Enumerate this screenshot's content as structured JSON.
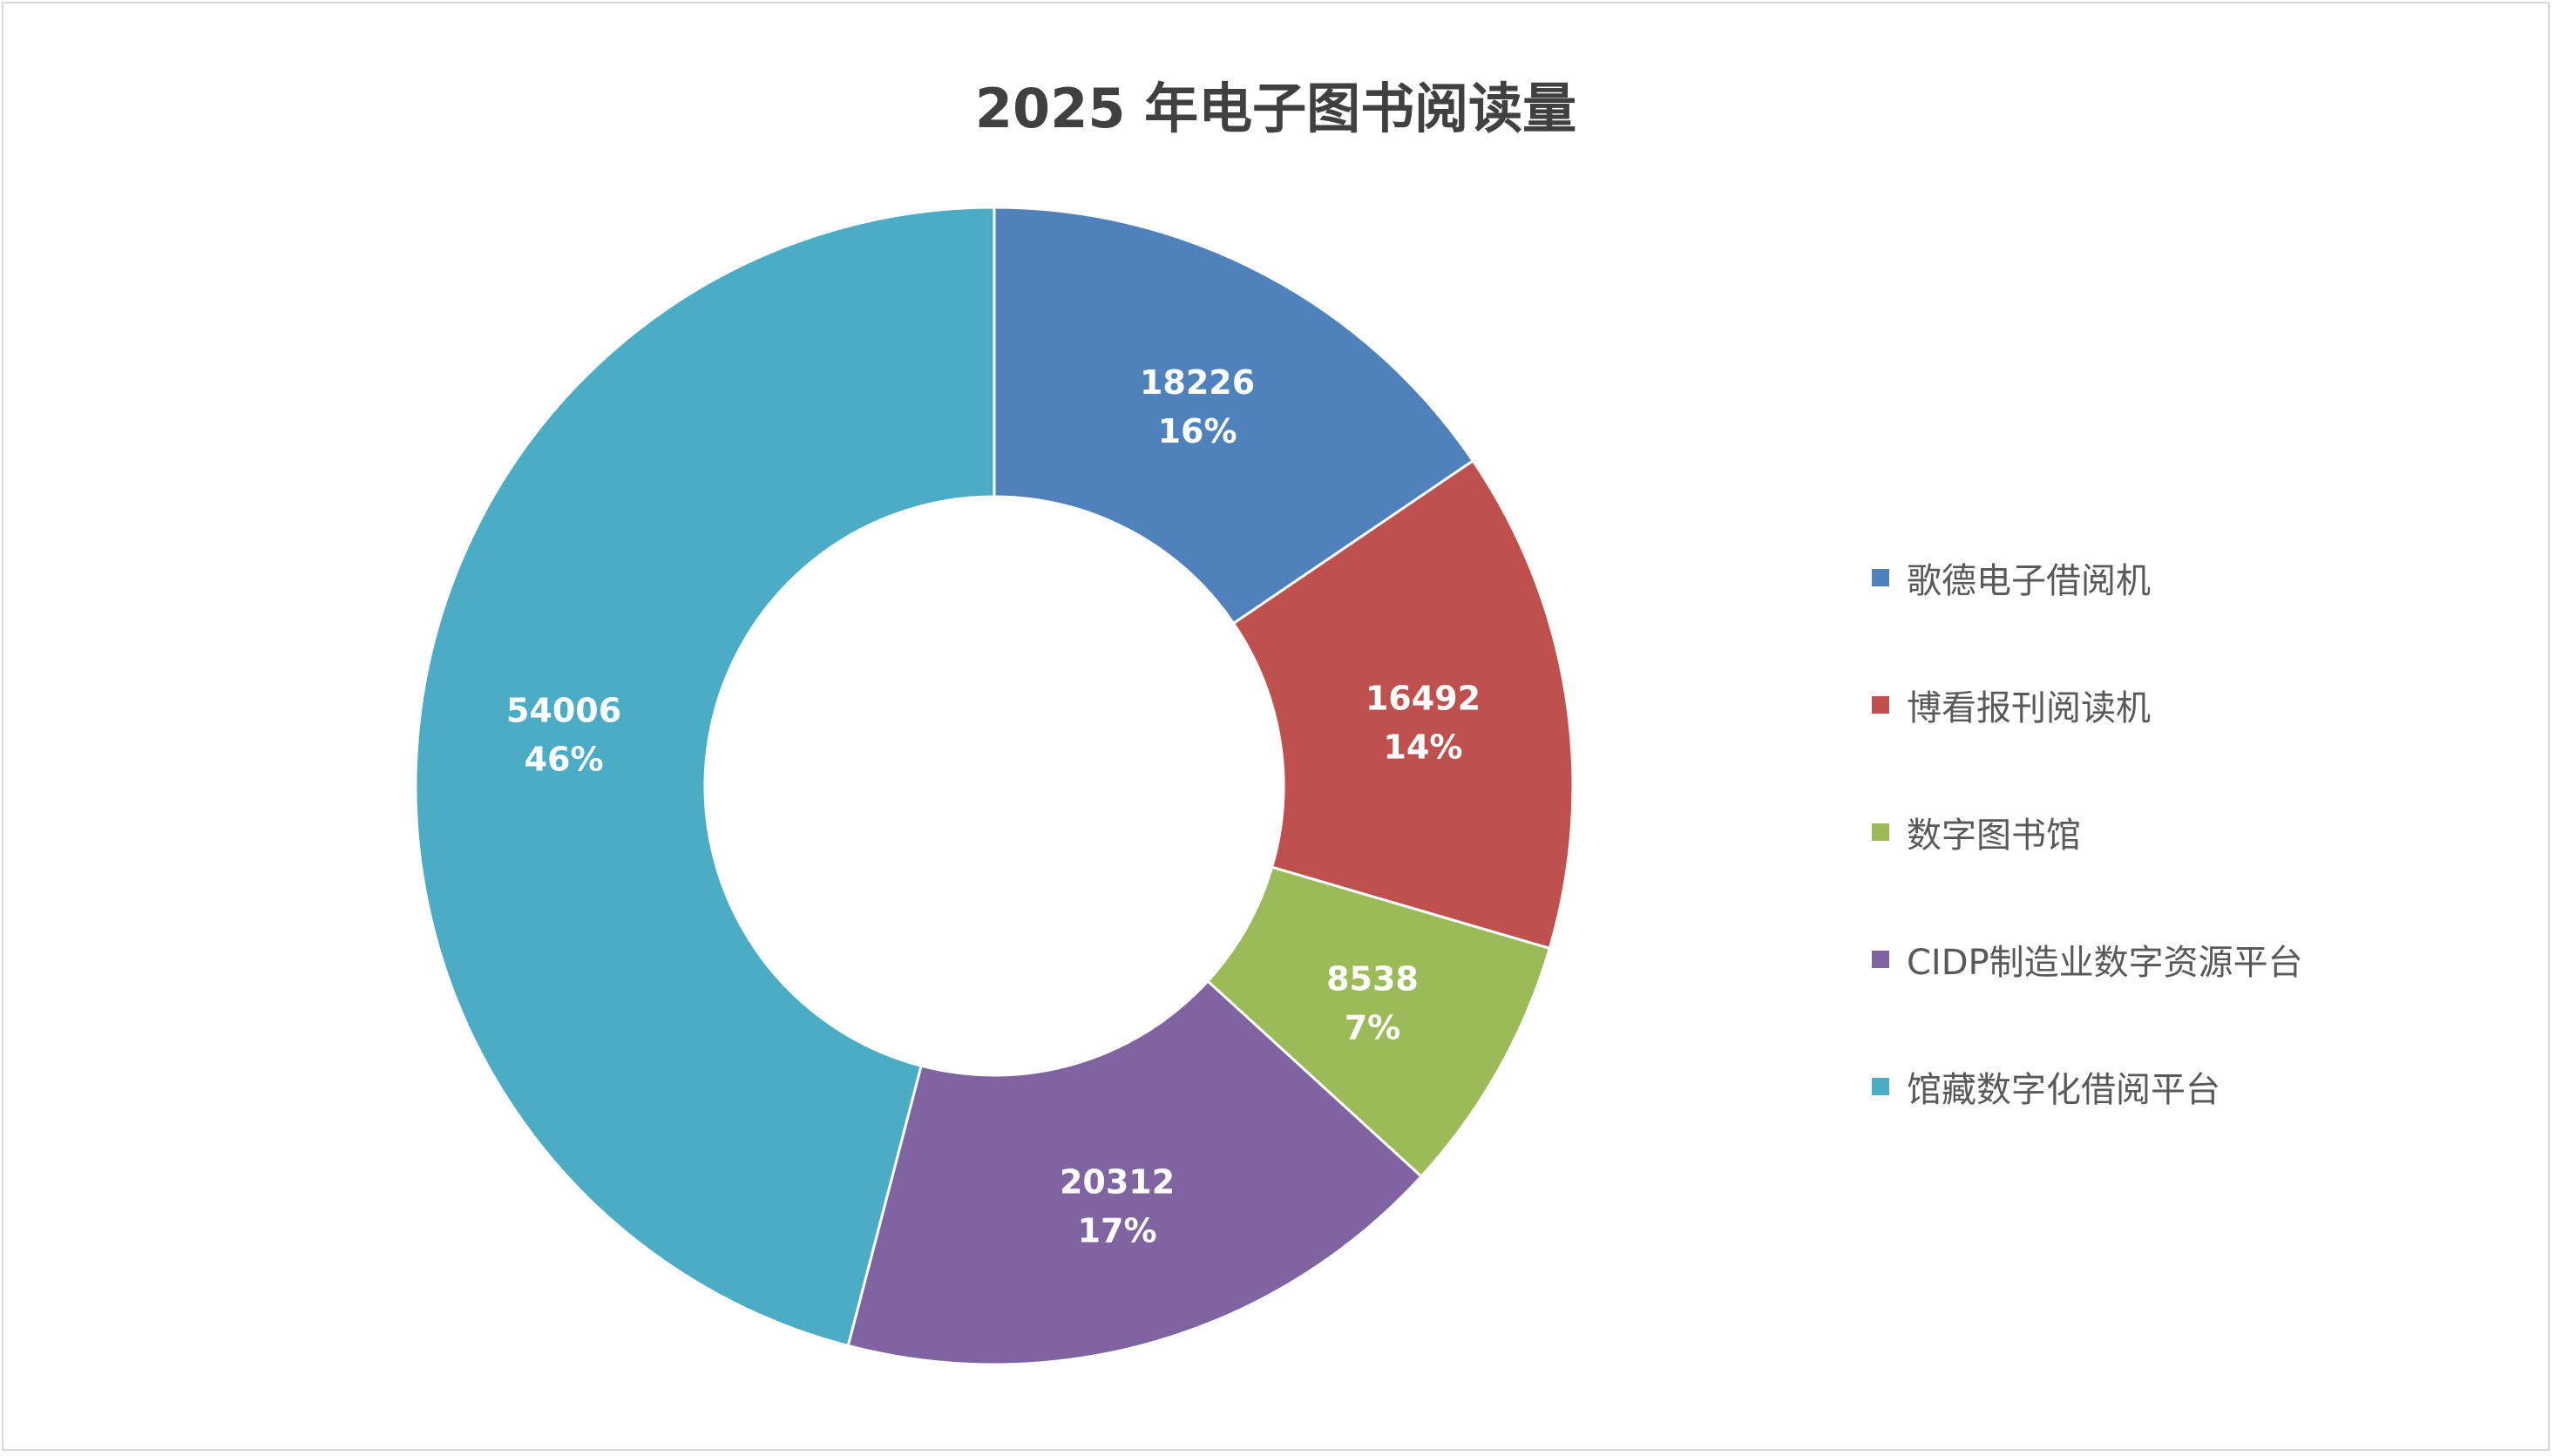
{
  "chart_data": {
    "type": "pie",
    "variant": "donut",
    "title": "2025 年电子图书阅读量",
    "categories": [
      "歌德电子借阅机",
      "博看报刊阅读机",
      "数字图书馆",
      "CIDP制造业数字资源平台",
      "馆藏数字化借阅平台"
    ],
    "values": [
      18226,
      16492,
      8538,
      20312,
      54006
    ],
    "percent_labels": [
      "16%",
      "14%",
      "7%",
      "17%",
      "46%"
    ],
    "colors": [
      "#4F81BD",
      "#C0504D",
      "#9BBB59",
      "#8064A2",
      "#4BACC6"
    ],
    "legend_position": "right",
    "data_labels": "value and percent"
  }
}
